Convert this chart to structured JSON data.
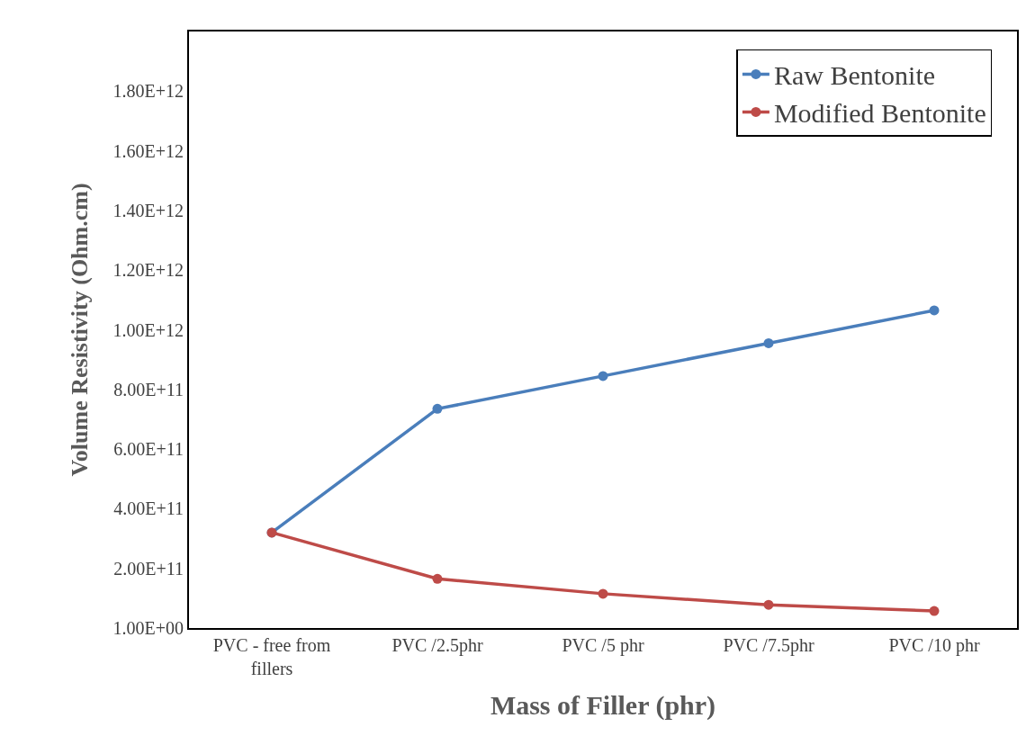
{
  "chart_data": {
    "type": "line",
    "xlabel": "Mass of Filler (phr)",
    "ylabel": "Volume Resistivity (Ohm.cm)",
    "categories": [
      "PVC - free from fillers",
      "PVC /2.5phr",
      "PVC /5 phr",
      "PVC /7.5phr",
      "PVC /10 phr"
    ],
    "series": [
      {
        "name": "Raw Bentonite",
        "color": "#4a7ebb",
        "values": [
          320000000000.0,
          735000000000.0,
          845000000000.0,
          955000000000.0,
          1065000000000.0
        ]
      },
      {
        "name": "Modified Bentonite",
        "color": "#be4b48",
        "values": [
          320000000000.0,
          165000000000.0,
          115000000000.0,
          78000000000.0,
          57000000000.0
        ]
      }
    ],
    "ylim": [
      1,
      2000000000000.0
    ],
    "yticks": [
      {
        "value": 1,
        "label": "1.00E+00"
      },
      {
        "value": 200000000000.0,
        "label": "2.00E+11"
      },
      {
        "value": 400000000000.0,
        "label": "4.00E+11"
      },
      {
        "value": 600000000000.0,
        "label": "6.00E+11"
      },
      {
        "value": 800000000000.0,
        "label": "8.00E+11"
      },
      {
        "value": 1000000000000.0,
        "label": "1.00E+12"
      },
      {
        "value": 1200000000000.0,
        "label": "1.20E+12"
      },
      {
        "value": 1400000000000.0,
        "label": "1.40E+12"
      },
      {
        "value": 1600000000000.0,
        "label": "1.60E+12"
      },
      {
        "value": 1800000000000.0,
        "label": "1.80E+12"
      }
    ],
    "legend": "top right",
    "marker": "circle",
    "line_style": "solid"
  }
}
